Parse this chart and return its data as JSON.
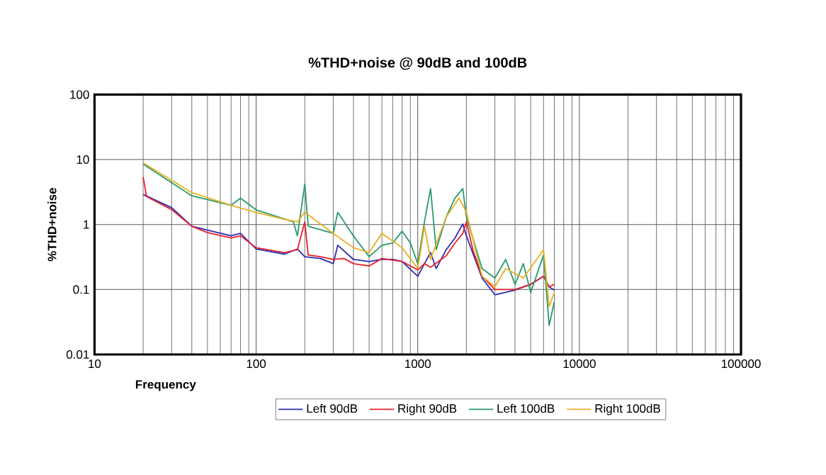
{
  "chart_data": {
    "type": "line",
    "title": "%THD+noise @ 90dB and 100dB",
    "xlabel": "Frequency",
    "ylabel": "%THD+noise",
    "log": "xy",
    "grid": true,
    "legend": "bottom",
    "xlim": [
      10,
      100000
    ],
    "ylim": [
      0.01,
      100
    ],
    "xticks": [
      10,
      100,
      1000,
      10000,
      100000
    ],
    "yticks": [
      0.01,
      0.1,
      1,
      10,
      100
    ],
    "series": [
      {
        "name": "Left 90dB",
        "color": "#2b2bb0",
        "x": [
          20,
          30,
          40,
          50,
          70,
          80,
          100,
          150,
          180,
          200,
          250,
          300,
          320,
          400,
          500,
          600,
          700,
          800,
          1000,
          1100,
          1200,
          1300,
          1500,
          1700,
          1900,
          2000,
          2500,
          3000,
          4000,
          5000,
          6000,
          6500,
          7000
        ],
        "values": [
          2.9,
          1.82,
          0.94,
          0.82,
          0.67,
          0.73,
          0.42,
          0.35,
          0.42,
          0.32,
          0.3,
          0.25,
          0.48,
          0.29,
          0.27,
          0.29,
          0.29,
          0.27,
          0.16,
          0.25,
          0.37,
          0.21,
          0.41,
          0.62,
          1.02,
          0.67,
          0.15,
          0.083,
          0.098,
          0.12,
          0.16,
          0.11,
          0.098
        ]
      },
      {
        "name": "Right 90dB",
        "color": "#e8202a",
        "x": [
          20,
          21,
          30,
          40,
          50,
          70,
          80,
          100,
          150,
          180,
          200,
          210,
          250,
          300,
          350,
          400,
          500,
          600,
          800,
          1000,
          1100,
          1200,
          1500,
          1700,
          1900,
          2000,
          2200,
          2500,
          3000,
          4000,
          5000,
          6000,
          6500,
          7000
        ],
        "values": [
          5.4,
          2.7,
          1.7,
          0.94,
          0.75,
          0.62,
          0.67,
          0.44,
          0.37,
          0.41,
          1.1,
          0.34,
          0.32,
          0.29,
          0.3,
          0.25,
          0.23,
          0.3,
          0.27,
          0.2,
          0.25,
          0.22,
          0.33,
          0.52,
          0.73,
          1.1,
          0.4,
          0.16,
          0.1,
          0.1,
          0.12,
          0.16,
          0.11,
          0.12
        ]
      },
      {
        "name": "Left 100dB",
        "color": "#2a9a6a",
        "x": [
          20,
          40,
          70,
          80,
          100,
          170,
          180,
          200,
          210,
          300,
          320,
          400,
          500,
          600,
          700,
          800,
          900,
          1000,
          1100,
          1200,
          1300,
          1500,
          1700,
          1900,
          2000,
          2500,
          3000,
          3500,
          4000,
          4500,
          5000,
          6000,
          6500,
          7000
        ],
        "values": [
          8.5,
          2.77,
          1.98,
          2.55,
          1.68,
          1.1,
          0.67,
          4.2,
          0.94,
          0.73,
          1.54,
          0.67,
          0.32,
          0.48,
          0.52,
          0.79,
          0.52,
          0.25,
          1.1,
          3.56,
          0.41,
          1.31,
          2.55,
          3.56,
          1.31,
          0.21,
          0.15,
          0.29,
          0.12,
          0.25,
          0.09,
          0.34,
          0.028,
          0.065
        ]
      },
      {
        "name": "Right 100dB",
        "color": "#e8b020",
        "x": [
          20,
          40,
          70,
          100,
          150,
          180,
          200,
          300,
          400,
          500,
          600,
          800,
          1000,
          1100,
          1200,
          1500,
          1800,
          2000,
          2500,
          3000,
          3500,
          4500,
          6000,
          6500,
          7000
        ],
        "values": [
          8.9,
          3.1,
          1.98,
          1.54,
          1.2,
          1.1,
          1.54,
          0.73,
          0.44,
          0.37,
          0.73,
          0.44,
          0.21,
          0.94,
          0.29,
          1.31,
          2.55,
          1.54,
          0.16,
          0.11,
          0.21,
          0.15,
          0.41,
          0.055,
          0.09
        ]
      }
    ]
  }
}
